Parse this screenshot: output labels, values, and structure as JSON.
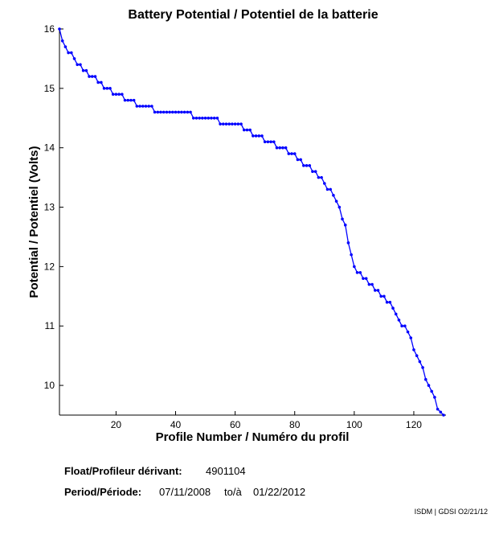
{
  "chart_data": {
    "type": "line",
    "title": "Battery Potential / Potentiel de la batterie",
    "x_label": "Profile Number / Numéro du profil",
    "y_label": "Potential / Potentiel (Volts)",
    "float_label": "Float/Profileur dérivant:",
    "float_id": "4901104",
    "period_label": "Period/Période:",
    "period_start": "07/11/2008",
    "period_sep": "to/à",
    "period_end": "01/22/2012",
    "footer": "ISDM | GDSI O2/21/12",
    "xlim": [
      1,
      130
    ],
    "ylim": [
      9.5,
      16
    ],
    "xticks": [
      20,
      40,
      60,
      80,
      100,
      120
    ],
    "yticks": [
      10,
      11,
      12,
      13,
      14,
      15,
      16
    ],
    "x": [
      1,
      2,
      3,
      4,
      5,
      6,
      7,
      8,
      9,
      10,
      11,
      12,
      13,
      14,
      15,
      16,
      17,
      18,
      19,
      20,
      21,
      22,
      23,
      24,
      25,
      26,
      27,
      28,
      29,
      30,
      31,
      32,
      33,
      34,
      35,
      36,
      37,
      38,
      39,
      40,
      41,
      42,
      43,
      44,
      45,
      46,
      47,
      48,
      49,
      50,
      51,
      52,
      53,
      54,
      55,
      56,
      57,
      58,
      59,
      60,
      61,
      62,
      63,
      64,
      65,
      66,
      67,
      68,
      69,
      70,
      71,
      72,
      73,
      74,
      75,
      76,
      77,
      78,
      79,
      80,
      81,
      82,
      83,
      84,
      85,
      86,
      87,
      88,
      89,
      90,
      91,
      92,
      93,
      94,
      95,
      96,
      97,
      98,
      99,
      100,
      101,
      102,
      103,
      104,
      105,
      106,
      107,
      108,
      109,
      110,
      111,
      112,
      113,
      114,
      115,
      116,
      117,
      118,
      119,
      120,
      121,
      122,
      123,
      124,
      125,
      126,
      127,
      128,
      129,
      130
    ],
    "series": [
      {
        "color": "#0000ff",
        "values": [
          16.0,
          15.8,
          15.7,
          15.6,
          15.6,
          15.5,
          15.4,
          15.4,
          15.3,
          15.3,
          15.2,
          15.2,
          15.2,
          15.1,
          15.1,
          15.0,
          15.0,
          15.0,
          14.9,
          14.9,
          14.9,
          14.9,
          14.8,
          14.8,
          14.8,
          14.8,
          14.7,
          14.7,
          14.7,
          14.7,
          14.7,
          14.7,
          14.6,
          14.6,
          14.6,
          14.6,
          14.6,
          14.6,
          14.6,
          14.6,
          14.6,
          14.6,
          14.6,
          14.6,
          14.6,
          14.5,
          14.5,
          14.5,
          14.5,
          14.5,
          14.5,
          14.5,
          14.5,
          14.5,
          14.4,
          14.4,
          14.4,
          14.4,
          14.4,
          14.4,
          14.4,
          14.4,
          14.3,
          14.3,
          14.3,
          14.2,
          14.2,
          14.2,
          14.2,
          14.1,
          14.1,
          14.1,
          14.1,
          14.0,
          14.0,
          14.0,
          14.0,
          13.9,
          13.9,
          13.9,
          13.8,
          13.8,
          13.7,
          13.7,
          13.7,
          13.6,
          13.6,
          13.5,
          13.5,
          13.4,
          13.3,
          13.3,
          13.2,
          13.1,
          13.0,
          12.8,
          12.7,
          12.4,
          12.2,
          12.0,
          11.9,
          11.9,
          11.8,
          11.8,
          11.7,
          11.7,
          11.6,
          11.6,
          11.5,
          11.5,
          11.4,
          11.4,
          11.3,
          11.2,
          11.1,
          11.0,
          11.0,
          10.9,
          10.8,
          10.6,
          10.5,
          10.4,
          10.3,
          10.1,
          10.0,
          9.9,
          9.8,
          9.6,
          9.55,
          9.5
        ]
      }
    ]
  }
}
